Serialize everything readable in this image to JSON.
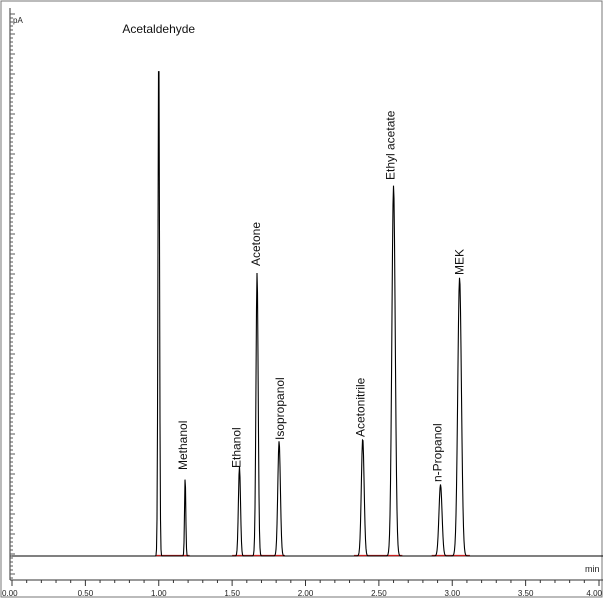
{
  "chart_data": {
    "type": "line",
    "title": "",
    "xlabel": "min",
    "ylabel": "pA",
    "xlim": [
      0.0,
      4.0
    ],
    "ylim": [
      0,
      100
    ],
    "grid": false,
    "x_ticks": [
      {
        "value": 0.0,
        "label": "0.00"
      },
      {
        "value": 0.5,
        "label": "0.50"
      },
      {
        "value": 1.0,
        "label": "1.00"
      },
      {
        "value": 1.5,
        "label": "1.50"
      },
      {
        "value": 2.0,
        "label": "2.00"
      },
      {
        "value": 2.5,
        "label": "2.50"
      },
      {
        "value": 3.0,
        "label": "3.00"
      },
      {
        "value": 3.5,
        "label": "3.50"
      },
      {
        "value": 4.0,
        "label": "4.00"
      }
    ],
    "peaks": [
      {
        "name": "Acetaldehyde",
        "retention_time": 1.0,
        "height": 100
      },
      {
        "name": "Methanol",
        "retention_time": 1.18,
        "height": 15.5
      },
      {
        "name": "Ethanol",
        "retention_time": 1.55,
        "height": 17.5
      },
      {
        "name": "Acetone",
        "retention_time": 1.67,
        "height": 55.5
      },
      {
        "name": "Isopropanol",
        "retention_time": 1.82,
        "height": 22.5
      },
      {
        "name": "Acetonitrile",
        "retention_time": 2.39,
        "height": 23.0
      },
      {
        "name": "Ethyl acetate",
        "retention_time": 2.6,
        "height": 72.5
      },
      {
        "name": "n-Propanol",
        "retention_time": 2.92,
        "height": 14.0
      },
      {
        "name": "MEK",
        "retention_time": 3.05,
        "height": 54.5
      }
    ],
    "colors": {
      "trace": "#000000",
      "baseline": "#c81e1e",
      "background": "#ffffff",
      "frame": "#555555"
    }
  }
}
